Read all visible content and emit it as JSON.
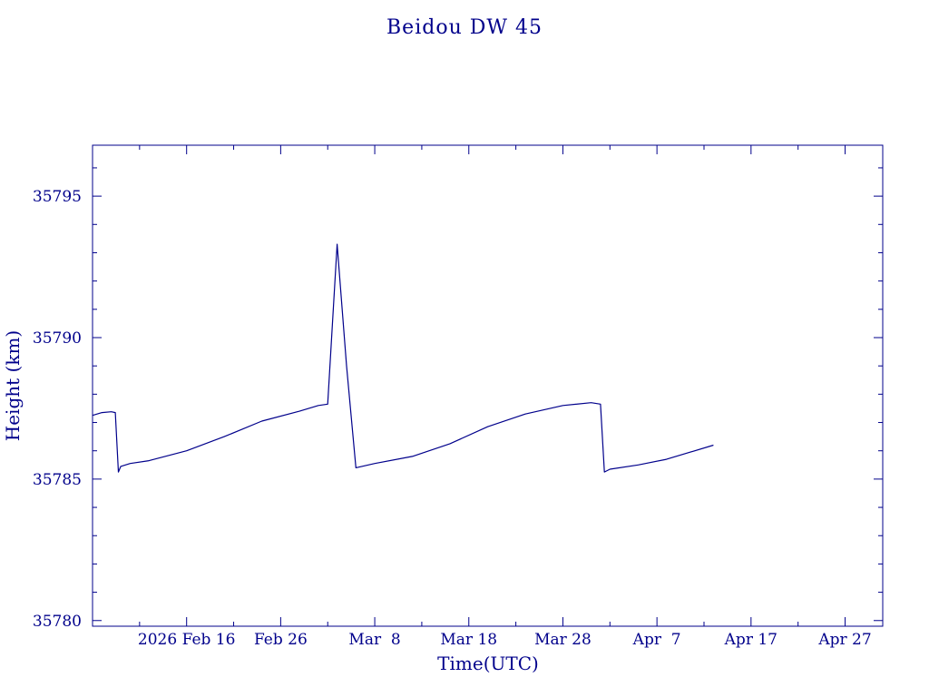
{
  "chart_data": {
    "type": "line",
    "title": "Beidou DW 45",
    "xlabel": "Time(UTC)",
    "ylabel": "Height (km)",
    "x_tick_labels": [
      "2026 Feb 16",
      "Feb 26",
      "Mar  8",
      "Mar 18",
      "Mar 28",
      "Apr  7",
      "Apr 17",
      "Apr 27"
    ],
    "x_tick_values": [
      "2026-02-16",
      "2026-02-26",
      "2026-03-08",
      "2026-03-18",
      "2026-03-28",
      "2026-04-07",
      "2026-04-17",
      "2026-04-27"
    ],
    "y_tick_labels": [
      "35795",
      "35790",
      "35785",
      "35780"
    ],
    "y_tick_values": [
      35795,
      35790,
      35785,
      35780
    ],
    "xlim": [
      "2026-02-06",
      "2026-05-01"
    ],
    "ylim": [
      35779.8,
      35796.8
    ],
    "grid": false,
    "line_color": "#00008b",
    "series": [
      {
        "name": "",
        "points": [
          [
            "2026-02-06",
            35787.25
          ],
          [
            "2026-02-07",
            35787.35
          ],
          [
            "2026-02-08",
            35787.38
          ],
          [
            "2026-02-08T10:00",
            35787.35
          ],
          [
            "2026-02-08T18:00",
            35785.25
          ],
          [
            "2026-02-09",
            35785.45
          ],
          [
            "2026-02-10",
            35785.55
          ],
          [
            "2026-02-12",
            35785.65
          ],
          [
            "2026-02-16",
            35786.0
          ],
          [
            "2026-02-20",
            35786.5
          ],
          [
            "2026-02-24",
            35787.05
          ],
          [
            "2026-02-28",
            35787.4
          ],
          [
            "2026-03-02",
            35787.6
          ],
          [
            "2026-03-03",
            35787.65
          ],
          [
            "2026-03-04",
            35793.3
          ],
          [
            "2026-03-05",
            35789.0
          ],
          [
            "2026-03-06",
            35785.4
          ],
          [
            "2026-03-08",
            35785.55
          ],
          [
            "2026-03-12",
            35785.8
          ],
          [
            "2026-03-16",
            35786.25
          ],
          [
            "2026-03-20",
            35786.85
          ],
          [
            "2026-03-24",
            35787.3
          ],
          [
            "2026-03-28",
            35787.6
          ],
          [
            "2026-03-31",
            35787.7
          ],
          [
            "2026-04-01",
            35787.65
          ],
          [
            "2026-04-01T10:00",
            35785.25
          ],
          [
            "2026-04-02",
            35785.35
          ],
          [
            "2026-04-05",
            35785.5
          ],
          [
            "2026-04-08",
            35785.7
          ],
          [
            "2026-04-13",
            35786.2
          ]
        ]
      }
    ]
  }
}
